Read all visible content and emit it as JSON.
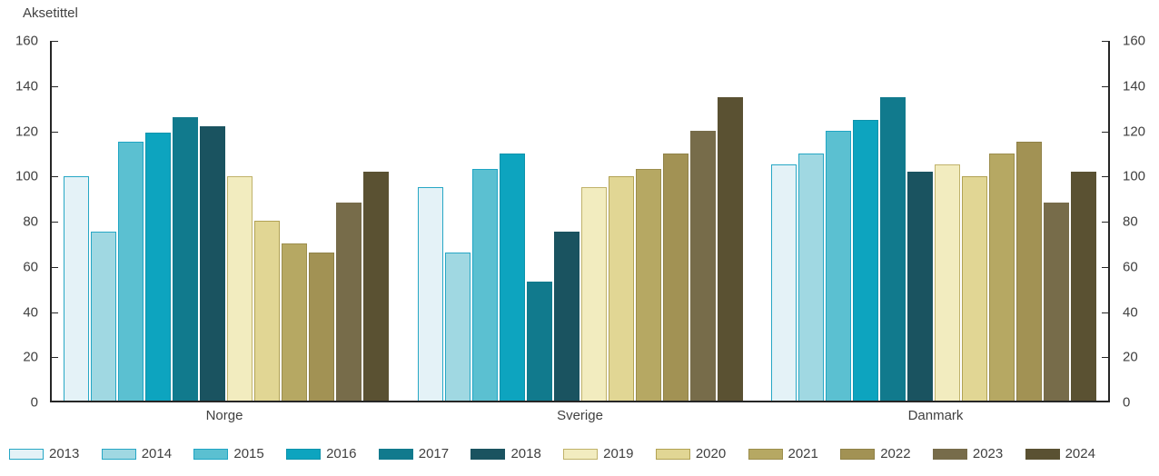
{
  "chart_data": {
    "type": "bar",
    "ylabel": "Aksetittel",
    "categories": [
      "Norge",
      "Sverige",
      "Danmark"
    ],
    "series": [
      {
        "name": "2013",
        "fill": "#E4F2F7",
        "border": "#27A7C5",
        "values": [
          100,
          95,
          105
        ]
      },
      {
        "name": "2014",
        "fill": "#A0D8E2",
        "border": "#27A7C5",
        "values": [
          75,
          66,
          110
        ]
      },
      {
        "name": "2015",
        "fill": "#5BC0D1",
        "border": "#1FA5C4",
        "values": [
          115,
          103,
          120
        ]
      },
      {
        "name": "2016",
        "fill": "#0DA4BF",
        "border": "#0D93AC",
        "values": [
          119,
          110,
          125
        ]
      },
      {
        "name": "2017",
        "fill": "#117A8D",
        "border": "#117A8D",
        "values": [
          126,
          53,
          135
        ]
      },
      {
        "name": "2018",
        "fill": "#1A5360",
        "border": "#1A5360",
        "values": [
          122,
          75,
          102
        ]
      },
      {
        "name": "2019",
        "fill": "#F2ECBF",
        "border": "#C0B26A",
        "values": [
          100,
          95,
          105
        ]
      },
      {
        "name": "2020",
        "fill": "#E1D694",
        "border": "#B1A254",
        "values": [
          80,
          100,
          100
        ]
      },
      {
        "name": "2021",
        "fill": "#B6A863",
        "border": "#9C8E4D",
        "values": [
          70,
          103,
          110
        ]
      },
      {
        "name": "2022",
        "fill": "#A29254",
        "border": "#8F8147",
        "values": [
          66,
          110,
          115
        ]
      },
      {
        "name": "2023",
        "fill": "#776C4A",
        "border": "#776C4A",
        "values": [
          88,
          120,
          88
        ]
      },
      {
        "name": "2024",
        "fill": "#5A5132",
        "border": "#5A5132",
        "values": [
          102,
          135,
          102
        ]
      }
    ],
    "y_axis": {
      "min": 0,
      "max": 160,
      "step": 20,
      "tick_labels": [
        "0",
        "20",
        "40",
        "60",
        "80",
        "100",
        "120",
        "140",
        "160"
      ]
    },
    "legend": {
      "position": "bottom"
    },
    "grid": false,
    "axis_color": "#262626",
    "text_color": "#404040"
  }
}
